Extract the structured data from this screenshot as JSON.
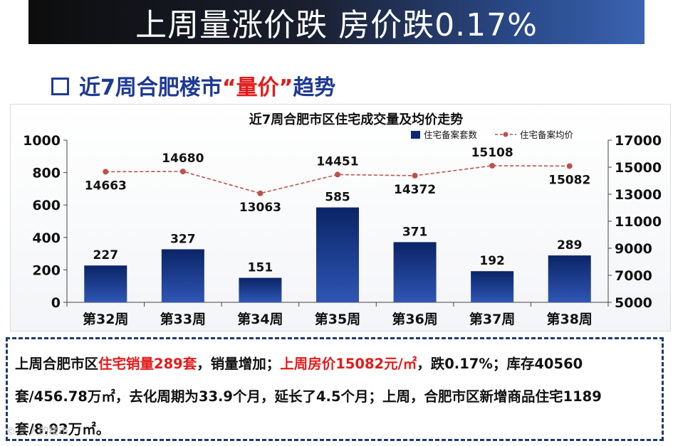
{
  "header": {
    "title": "上周量涨价跌 房价跌0.17%"
  },
  "section": {
    "title_prefix": "近7周合肥楼市",
    "title_highlight": "“量价”",
    "title_suffix": "趋势"
  },
  "chart_data": {
    "type": "bar+line",
    "title": "近7周合肥市区住宅成交量及均价走势",
    "categories": [
      "第32周",
      "第33周",
      "第34周",
      "第35周",
      "第36周",
      "第37周",
      "第38周"
    ],
    "series": [
      {
        "name": "住宅备案套数",
        "type": "bar",
        "axis": "left",
        "color": "#0d2a6e",
        "values": [
          227,
          327,
          151,
          585,
          371,
          192,
          289
        ]
      },
      {
        "name": "住宅备案均价",
        "type": "line",
        "axis": "right",
        "color": "#c0504d",
        "values": [
          14663,
          14680,
          13063,
          14451,
          14372,
          15108,
          15082
        ]
      }
    ],
    "y_left": {
      "min": 0,
      "max": 1000,
      "ticks": [
        0,
        200,
        400,
        600,
        800,
        1000
      ]
    },
    "y_right": {
      "min": 5000,
      "max": 17000,
      "ticks": [
        5000,
        7000,
        9000,
        11000,
        13000,
        15000,
        17000
      ]
    },
    "legend_position": "top-right"
  },
  "summary": {
    "p1": "上周合肥市区",
    "r1": "住宅销量289套",
    "p2": "，销量增加；",
    "r2": "上周房价15082元/㎡",
    "p3": "，跌0.17%；库存40560套/456.78万㎡，去化周期为33.9个月，延长了4.5个月；上周，合肥市区新增商品住宅1189套/8.92万㎡。"
  },
  "watermark": "© 一人的楼市"
}
